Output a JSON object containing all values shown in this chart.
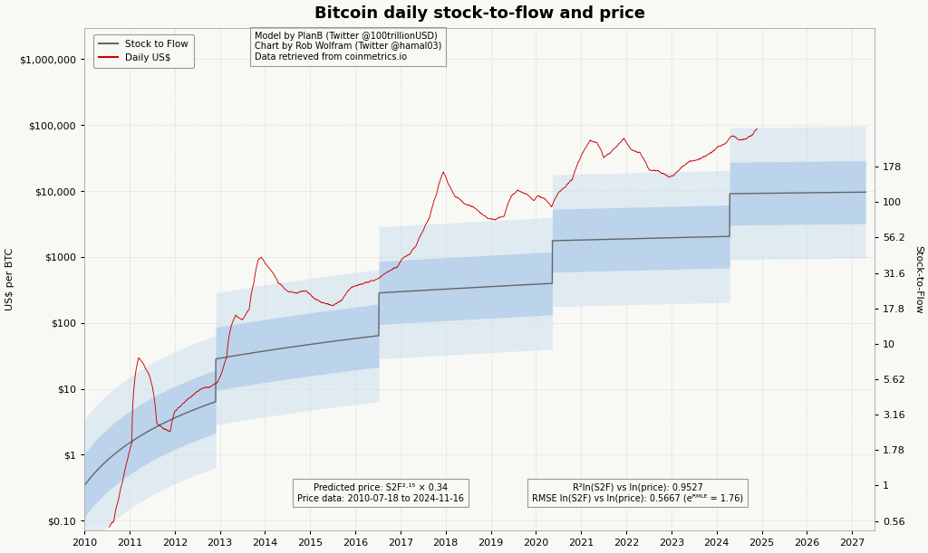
{
  "title": "Bitcoin daily stock-to-flow and price",
  "ylabel_left": "US$ per BTC",
  "ylabel_right": "Stock-to-Flow",
  "legend_line1": "Stock to Flow",
  "legend_line2": "Daily US$",
  "annotation1_line1": "Predicted price: S2F²·¹⁵ × 0.34",
  "annotation1_line2": "Price data: 2010-07-18 to 2024-11-16",
  "annotation2_line1": "R²ln(S2F) vs ln(price): 0.9527",
  "annotation2_line2": "RMSE ln(S2F) vs ln(price): 0.5667 (eᴿᴹᴸᴱ = 1.76)",
  "info_line1": "Model by PlanB (Twitter @100trillionUSD)",
  "info_line2": "Chart by Rob Wolfram (Twitter @hamal03)",
  "info_line3": "Data retrieved from coinmetrics.io",
  "bg_color": "#f8f8f4",
  "grid_color": "#bbbbbb",
  "s2f_line_color": "#666666",
  "price_line_color": "#cc0000",
  "band1_color": "#a8c8e8",
  "band2_color": "#cce0f0",
  "xmin": 2010.0,
  "xmax": 2027.5,
  "ymin": 0.07,
  "ymax": 3000000,
  "title_fontsize": 13,
  "axis_fontsize": 8,
  "tick_fontsize": 8
}
